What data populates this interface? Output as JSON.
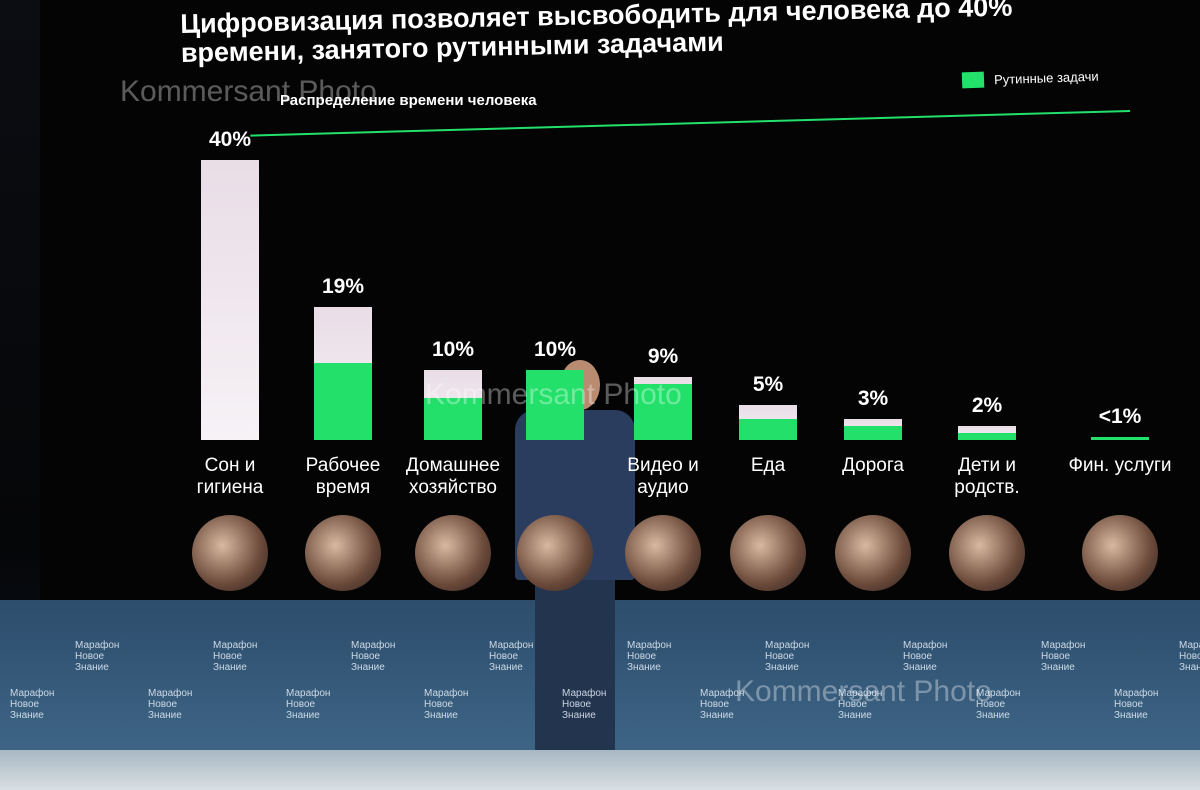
{
  "chart_data": {
    "type": "bar",
    "title": "Цифровизация позволяет высвободить для человека до 40% времени, занятого рутинными задачами",
    "subtitle": "Распределение времени человека",
    "categories": [
      "Сон и гигиена",
      "Рабочее время",
      "Домашнее хозяйство",
      null,
      "Видео и аудио",
      "Еда",
      "Дорога",
      "Дети и родств.",
      "Фин. услуги"
    ],
    "values": [
      40,
      19,
      10,
      10,
      9,
      5,
      3,
      2,
      0.5
    ],
    "value_labels": [
      "40%",
      "19%",
      "10%",
      "10%",
      "9%",
      "5%",
      "3%",
      "2%",
      "<1%"
    ],
    "color": "#e9dde6",
    "series": [
      {
        "name": "Рутинные задачи",
        "color": "#22e06a",
        "values": [
          0,
          11,
          6,
          10,
          8,
          3,
          2,
          1,
          0.5
        ]
      }
    ]
  },
  "watermark": "Kommersant Photo",
  "stage_logo": "Марафон Новое Знание"
}
